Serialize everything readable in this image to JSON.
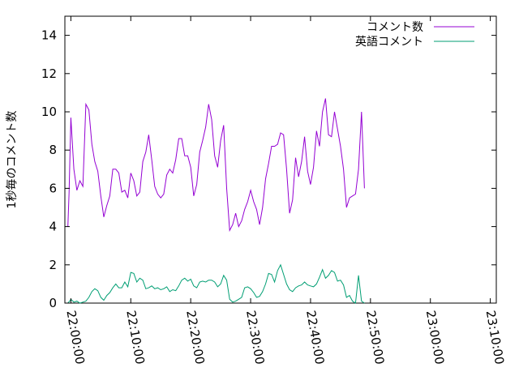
{
  "chart_data": {
    "type": "line",
    "ylabel": "1秒毎のコメント数",
    "xlabel": "",
    "ylim": [
      0,
      15
    ],
    "xlim_minutes": [
      -1,
      71
    ],
    "yticks": [
      0,
      2,
      4,
      6,
      8,
      10,
      12,
      14
    ],
    "xticks": [
      {
        "minute": 0,
        "label": "22:00:00"
      },
      {
        "minute": 10,
        "label": "22:10:00"
      },
      {
        "minute": 20,
        "label": "22:20:00"
      },
      {
        "minute": 30,
        "label": "22:30:00"
      },
      {
        "minute": 40,
        "label": "22:40:00"
      },
      {
        "minute": 50,
        "label": "22:50:00"
      },
      {
        "minute": 60,
        "label": "23:00:00"
      },
      {
        "minute": 70,
        "label": "23:10:00"
      }
    ],
    "legend_position": "top-right",
    "series": [
      {
        "name": "コメント数",
        "color": "#9400d3",
        "points": [
          [
            -0.5,
            4.0
          ],
          [
            -0.3,
            5.8
          ],
          [
            0.0,
            9.7
          ],
          [
            0.5,
            7.0
          ],
          [
            1.0,
            5.9
          ],
          [
            1.5,
            6.4
          ],
          [
            2.0,
            6.1
          ],
          [
            2.5,
            10.4
          ],
          [
            3.0,
            10.1
          ],
          [
            3.5,
            8.3
          ],
          [
            4.0,
            7.4
          ],
          [
            4.5,
            6.9
          ],
          [
            5.0,
            5.6
          ],
          [
            5.5,
            4.5
          ],
          [
            6.0,
            5.1
          ],
          [
            6.5,
            5.6
          ],
          [
            7.0,
            7.0
          ],
          [
            7.5,
            7.0
          ],
          [
            8.0,
            6.8
          ],
          [
            8.5,
            5.8
          ],
          [
            9.0,
            5.9
          ],
          [
            9.5,
            5.5
          ],
          [
            10.0,
            6.8
          ],
          [
            10.5,
            6.4
          ],
          [
            11.0,
            5.6
          ],
          [
            11.5,
            5.8
          ],
          [
            12.0,
            7.4
          ],
          [
            12.5,
            7.9
          ],
          [
            13.0,
            8.8
          ],
          [
            13.5,
            7.5
          ],
          [
            14.0,
            6.1
          ],
          [
            14.5,
            5.7
          ],
          [
            15.0,
            5.5
          ],
          [
            15.5,
            5.7
          ],
          [
            16.0,
            6.7
          ],
          [
            16.5,
            7.0
          ],
          [
            17.0,
            6.8
          ],
          [
            17.5,
            7.5
          ],
          [
            18.0,
            8.6
          ],
          [
            18.5,
            8.6
          ],
          [
            19.0,
            7.7
          ],
          [
            19.5,
            7.7
          ],
          [
            20.0,
            7.1
          ],
          [
            20.5,
            5.6
          ],
          [
            21.0,
            6.2
          ],
          [
            21.5,
            7.9
          ],
          [
            22.0,
            8.5
          ],
          [
            22.5,
            9.2
          ],
          [
            23.0,
            10.4
          ],
          [
            23.5,
            9.6
          ],
          [
            24.0,
            7.7
          ],
          [
            24.5,
            7.1
          ],
          [
            25.0,
            8.5
          ],
          [
            25.5,
            9.3
          ],
          [
            26.0,
            6.0
          ],
          [
            26.5,
            3.8
          ],
          [
            27.0,
            4.1
          ],
          [
            27.5,
            4.7
          ],
          [
            28.0,
            4.0
          ],
          [
            28.5,
            4.3
          ],
          [
            29.0,
            4.9
          ],
          [
            29.5,
            5.3
          ],
          [
            30.0,
            5.9
          ],
          [
            30.5,
            5.3
          ],
          [
            31.0,
            4.9
          ],
          [
            31.5,
            4.1
          ],
          [
            32.0,
            5.0
          ],
          [
            32.5,
            6.5
          ],
          [
            33.0,
            7.3
          ],
          [
            33.5,
            8.2
          ],
          [
            34.0,
            8.2
          ],
          [
            34.5,
            8.3
          ],
          [
            35.0,
            8.9
          ],
          [
            35.5,
            8.8
          ],
          [
            36.0,
            7.0
          ],
          [
            36.5,
            4.7
          ],
          [
            37.0,
            5.4
          ],
          [
            37.5,
            7.6
          ],
          [
            38.0,
            6.6
          ],
          [
            38.5,
            7.4
          ],
          [
            39.0,
            8.7
          ],
          [
            39.5,
            6.9
          ],
          [
            40.0,
            6.2
          ],
          [
            40.5,
            7.1
          ],
          [
            41.0,
            9.0
          ],
          [
            41.5,
            8.2
          ],
          [
            42.0,
            10.0
          ],
          [
            42.5,
            10.7
          ],
          [
            43.0,
            8.8
          ],
          [
            43.5,
            8.7
          ],
          [
            44.0,
            10.0
          ],
          [
            44.5,
            9.1
          ],
          [
            45.0,
            8.2
          ],
          [
            45.5,
            7.0
          ],
          [
            46.0,
            5.0
          ],
          [
            46.5,
            5.5
          ],
          [
            47.0,
            5.6
          ],
          [
            47.5,
            5.7
          ],
          [
            48.0,
            7.0
          ],
          [
            48.5,
            10.0
          ],
          [
            49.0,
            6.0
          ]
        ]
      },
      {
        "name": "英語コメント",
        "color": "#009e73",
        "points": [
          [
            -0.5,
            0.0
          ],
          [
            -0.2,
            0.1
          ],
          [
            0.0,
            0.2
          ],
          [
            0.5,
            0.05
          ],
          [
            1.0,
            0.1
          ],
          [
            1.5,
            0.0
          ],
          [
            2.0,
            0.05
          ],
          [
            2.5,
            0.1
          ],
          [
            3.0,
            0.3
          ],
          [
            3.5,
            0.6
          ],
          [
            4.0,
            0.75
          ],
          [
            4.5,
            0.65
          ],
          [
            5.0,
            0.3
          ],
          [
            5.5,
            0.15
          ],
          [
            6.0,
            0.4
          ],
          [
            6.5,
            0.55
          ],
          [
            7.0,
            0.8
          ],
          [
            7.5,
            1.0
          ],
          [
            8.0,
            0.8
          ],
          [
            8.5,
            0.8
          ],
          [
            9.0,
            1.1
          ],
          [
            9.5,
            0.85
          ],
          [
            10.0,
            1.6
          ],
          [
            10.5,
            1.55
          ],
          [
            11.0,
            1.1
          ],
          [
            11.5,
            1.3
          ],
          [
            12.0,
            1.2
          ],
          [
            12.5,
            0.75
          ],
          [
            13.0,
            0.8
          ],
          [
            13.5,
            0.9
          ],
          [
            14.0,
            0.75
          ],
          [
            14.5,
            0.8
          ],
          [
            15.0,
            0.7
          ],
          [
            15.5,
            0.75
          ],
          [
            16.0,
            0.85
          ],
          [
            16.5,
            0.6
          ],
          [
            17.0,
            0.7
          ],
          [
            17.5,
            0.65
          ],
          [
            18.0,
            0.9
          ],
          [
            18.5,
            1.2
          ],
          [
            19.0,
            1.3
          ],
          [
            19.5,
            1.15
          ],
          [
            20.0,
            1.25
          ],
          [
            20.5,
            0.9
          ],
          [
            21.0,
            0.8
          ],
          [
            21.5,
            1.1
          ],
          [
            22.0,
            1.15
          ],
          [
            22.5,
            1.1
          ],
          [
            23.0,
            1.2
          ],
          [
            23.5,
            1.2
          ],
          [
            24.0,
            1.1
          ],
          [
            24.5,
            0.85
          ],
          [
            25.0,
            1.0
          ],
          [
            25.5,
            1.45
          ],
          [
            26.0,
            1.2
          ],
          [
            26.5,
            0.2
          ],
          [
            27.0,
            0.05
          ],
          [
            27.5,
            0.1
          ],
          [
            28.0,
            0.2
          ],
          [
            28.5,
            0.3
          ],
          [
            29.0,
            0.8
          ],
          [
            29.5,
            0.85
          ],
          [
            30.0,
            0.75
          ],
          [
            30.5,
            0.55
          ],
          [
            31.0,
            0.3
          ],
          [
            31.5,
            0.35
          ],
          [
            32.0,
            0.6
          ],
          [
            32.5,
            1.0
          ],
          [
            33.0,
            1.55
          ],
          [
            33.5,
            1.5
          ],
          [
            34.0,
            1.1
          ],
          [
            34.5,
            1.7
          ],
          [
            35.0,
            2.0
          ],
          [
            35.5,
            1.5
          ],
          [
            36.0,
            1.0
          ],
          [
            36.5,
            0.7
          ],
          [
            37.0,
            0.6
          ],
          [
            37.5,
            0.8
          ],
          [
            38.0,
            0.9
          ],
          [
            38.5,
            0.95
          ],
          [
            39.0,
            1.1
          ],
          [
            39.5,
            0.95
          ],
          [
            40.0,
            0.9
          ],
          [
            40.5,
            0.85
          ],
          [
            41.0,
            1.0
          ],
          [
            41.5,
            1.35
          ],
          [
            42.0,
            1.75
          ],
          [
            42.5,
            1.3
          ],
          [
            43.0,
            1.45
          ],
          [
            43.5,
            1.7
          ],
          [
            44.0,
            1.6
          ],
          [
            44.5,
            1.15
          ],
          [
            45.0,
            1.2
          ],
          [
            45.5,
            0.95
          ],
          [
            46.0,
            0.3
          ],
          [
            46.5,
            0.4
          ],
          [
            47.0,
            0.1
          ],
          [
            47.5,
            0.0
          ],
          [
            48.0,
            1.45
          ],
          [
            48.5,
            0.1
          ],
          [
            49.0,
            0.0
          ]
        ]
      }
    ]
  }
}
